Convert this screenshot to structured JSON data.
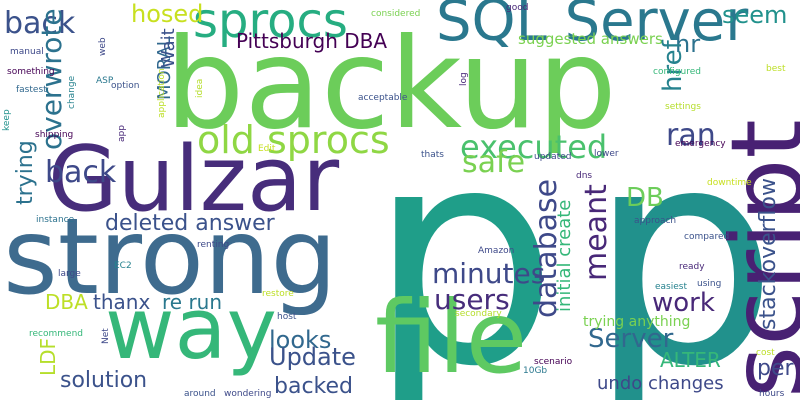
{
  "cloud": {
    "words": [
      {
        "text": "p",
        "color": "#1f9e89"
      },
      {
        "text": "p",
        "color": "#21918c"
      },
      {
        "text": "backup",
        "color": "#6ccd5a"
      },
      {
        "text": "strong",
        "color": "#3e6b8e"
      },
      {
        "text": "Gulzar",
        "color": "#472d7b"
      },
      {
        "text": "file",
        "color": "#5ec962"
      },
      {
        "text": "way",
        "color": "#35b779"
      },
      {
        "text": "script",
        "color": "#482173"
      },
      {
        "text": "SQL Server",
        "color": "#2a788e"
      },
      {
        "text": "sprocs",
        "color": "#26ad81"
      },
      {
        "text": "old sprocs",
        "color": "#8fd744"
      },
      {
        "text": "back",
        "color": "#3b528b"
      },
      {
        "text": "back",
        "color": "#3e4989"
      },
      {
        "text": "overwrote",
        "color": "#2c728e"
      },
      {
        "text": "hosed",
        "color": "#c8e020"
      },
      {
        "text": "seem",
        "color": "#21918c"
      },
      {
        "text": "hr",
        "color": "#2c728e"
      },
      {
        "text": "Pittsburgh DBA",
        "color": "#440154"
      },
      {
        "text": "suggested answers",
        "color": "#7ad151"
      },
      {
        "text": "MORAL",
        "color": "#31688e"
      },
      {
        "text": "Wait",
        "color": "#3b528b"
      },
      {
        "text": "executed",
        "color": "#4ac16d"
      },
      {
        "text": "safe",
        "color": "#7ad151"
      },
      {
        "text": "ran",
        "color": "#3e4989"
      },
      {
        "text": "href",
        "color": "#26828e"
      },
      {
        "text": "stackoverflow",
        "color": "#3b528b"
      },
      {
        "text": "trying",
        "color": "#2c728e"
      },
      {
        "text": "deleted answer",
        "color": "#3b528b"
      },
      {
        "text": "database",
        "color": "#3e4989"
      },
      {
        "text": "initial create",
        "color": "#35b779"
      },
      {
        "text": "meant",
        "color": "#482878"
      },
      {
        "text": "DB",
        "color": "#6ccd5a"
      },
      {
        "text": "minutes",
        "color": "#3e4989"
      },
      {
        "text": "users",
        "color": "#472d7b"
      },
      {
        "text": "DBA",
        "color": "#bddf26"
      },
      {
        "text": "thanx",
        "color": "#3b528b"
      },
      {
        "text": "re run",
        "color": "#2a788e"
      },
      {
        "text": "work",
        "color": "#482878"
      },
      {
        "text": "looks",
        "color": "#31688e"
      },
      {
        "text": "Update",
        "color": "#3b528b"
      },
      {
        "text": "Server",
        "color": "#31688e"
      },
      {
        "text": "per",
        "color": "#3e4989"
      },
      {
        "text": "ALTER",
        "color": "#35b779"
      },
      {
        "text": "solution",
        "color": "#3b528b"
      },
      {
        "text": "backed",
        "color": "#3b528b"
      },
      {
        "text": "undo changes",
        "color": "#3e4989"
      },
      {
        "text": "trying anything",
        "color": "#7ad151"
      },
      {
        "text": "LDF",
        "color": "#b5de2b"
      },
      {
        "text": "considered",
        "color": "#7ad151"
      },
      {
        "text": "good",
        "color": "#482878"
      },
      {
        "text": "manual",
        "color": "#3e4989"
      },
      {
        "text": "something",
        "color": "#440154"
      },
      {
        "text": "fastest",
        "color": "#31688e"
      },
      {
        "text": "ASP",
        "color": "#2a788e"
      },
      {
        "text": "option",
        "color": "#3b528b"
      },
      {
        "text": "change",
        "color": "#26828e"
      },
      {
        "text": "web",
        "color": "#3e4989"
      },
      {
        "text": "app",
        "color": "#482878"
      },
      {
        "text": "shipping",
        "color": "#440154"
      },
      {
        "text": "keep",
        "color": "#21918c"
      },
      {
        "text": "application",
        "color": "#bddf26"
      },
      {
        "text": "idea",
        "color": "#b5de2b"
      },
      {
        "text": "log",
        "color": "#482878"
      },
      {
        "text": "acceptable",
        "color": "#3b528b"
      },
      {
        "text": "configured",
        "color": "#35b779"
      },
      {
        "text": "best",
        "color": "#bddf26"
      },
      {
        "text": "settings",
        "color": "#b5de2b"
      },
      {
        "text": "emergency",
        "color": "#440154"
      },
      {
        "text": "lower",
        "color": "#3e4989"
      },
      {
        "text": "Edit",
        "color": "#c8e020"
      },
      {
        "text": "thats",
        "color": "#3b528b"
      },
      {
        "text": "updated",
        "color": "#3e4989"
      },
      {
        "text": "dns",
        "color": "#482878"
      },
      {
        "text": "downtime",
        "color": "#c8e020"
      },
      {
        "text": "approach",
        "color": "#3b528b"
      },
      {
        "text": "compared",
        "color": "#3b528b"
      },
      {
        "text": "instance",
        "color": "#2c728e"
      },
      {
        "text": "renting",
        "color": "#3e4989"
      },
      {
        "text": "Amazon",
        "color": "#3e4989"
      },
      {
        "text": "EC2",
        "color": "#26828e"
      },
      {
        "text": "large",
        "color": "#3e4989"
      },
      {
        "text": "ready",
        "color": "#482878"
      },
      {
        "text": "easiest",
        "color": "#26828e"
      },
      {
        "text": "using",
        "color": "#3b528b"
      },
      {
        "text": "restore",
        "color": "#bddf26"
      },
      {
        "text": "host",
        "color": "#3b528b"
      },
      {
        "text": "secondary",
        "color": "#b5de2b"
      },
      {
        "text": "recommend",
        "color": "#35b779"
      },
      {
        "text": "Net",
        "color": "#3e4989"
      },
      {
        "text": "scenario",
        "color": "#440154"
      },
      {
        "text": "10Gb",
        "color": "#2a788e"
      },
      {
        "text": "cost",
        "color": "#bddf26"
      },
      {
        "text": "around",
        "color": "#3b528b"
      },
      {
        "text": "wondering",
        "color": "#3e4989"
      },
      {
        "text": "hours",
        "color": "#3e4989"
      }
    ]
  }
}
